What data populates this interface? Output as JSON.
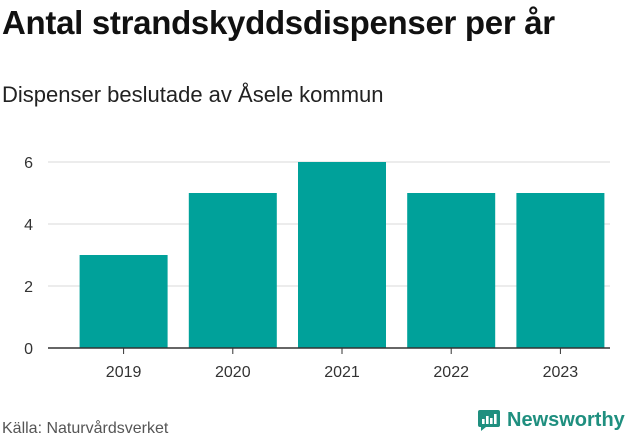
{
  "header": {
    "title": "Antal strandskyddsdispenser per år",
    "subtitle": "Dispenser beslutade av Åsele kommun"
  },
  "footer": {
    "source": "Källa: Naturvårdsverket",
    "brand": "Newsworthy"
  },
  "colors": {
    "bar": "#00a19a",
    "grid": "#d9d9d9",
    "axis": "#333333",
    "brand": "#1f8f7f"
  },
  "chart_data": {
    "type": "bar",
    "title": "Antal strandskyddsdispenser per år",
    "subtitle": "Dispenser beslutade av Åsele kommun",
    "categories": [
      "2019",
      "2020",
      "2021",
      "2022",
      "2023"
    ],
    "values": [
      3,
      5,
      6,
      5,
      5
    ],
    "yticks": [
      "0",
      "2",
      "4",
      "6"
    ],
    "ylim": [
      0,
      6
    ],
    "xlabel": "",
    "ylabel": "",
    "grid": true
  }
}
